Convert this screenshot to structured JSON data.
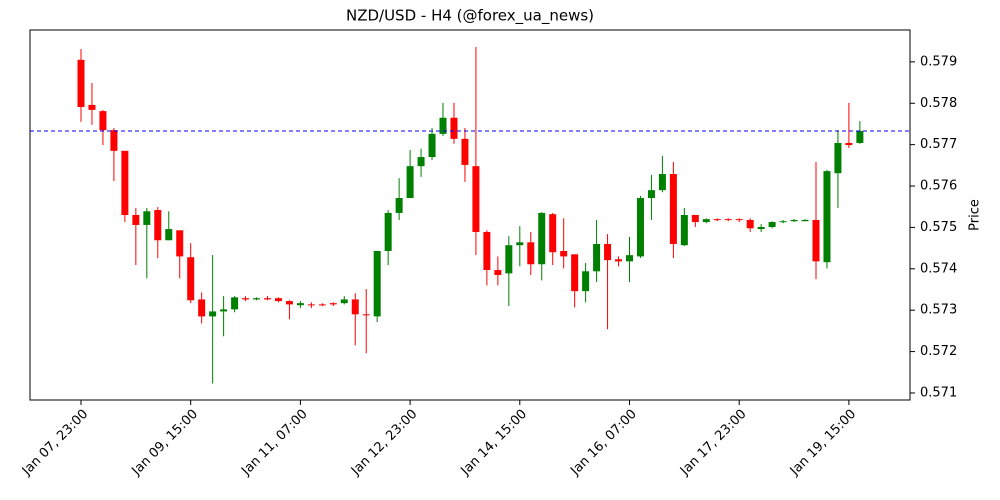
{
  "chart_data": {
    "type": "candlestick",
    "title": "NZD/USD - H4 (@forex_ua_news)",
    "ylabel": "Price",
    "categories": [
      "Jan 07, 23:00",
      null,
      null,
      null,
      null,
      null,
      null,
      null,
      null,
      null,
      "Jan 09, 15:00",
      null,
      null,
      null,
      null,
      null,
      null,
      null,
      null,
      null,
      "Jan 11, 07:00",
      null,
      null,
      null,
      null,
      null,
      null,
      null,
      null,
      null,
      "Jan 12, 23:00",
      null,
      null,
      null,
      null,
      null,
      null,
      null,
      null,
      null,
      "Jan 14, 15:00",
      null,
      null,
      null,
      null,
      null,
      null,
      null,
      null,
      null,
      "Jan 16, 07:00",
      null,
      null,
      null,
      null,
      null,
      null,
      null,
      null,
      null,
      "Jan 17, 23:00",
      null,
      null,
      null,
      null,
      null,
      null,
      null,
      null,
      null,
      "Jan 19, 15:00",
      null
    ],
    "open": [
      0.57905,
      0.57796,
      0.57781,
      0.57735,
      0.57685,
      0.5753,
      0.57506,
      0.57542,
      0.57469,
      0.57493,
      0.57428,
      0.57326,
      0.57285,
      0.57297,
      0.57302,
      0.57329,
      0.57326,
      0.57329,
      0.57329,
      0.57322,
      0.57312,
      0.57314,
      0.57314,
      0.57317,
      0.57317,
      0.57326,
      0.5729,
      0.57285,
      0.57443,
      0.57535,
      0.57571,
      0.57648,
      0.5767,
      0.57726,
      0.57765,
      0.57714,
      0.57648,
      0.57489,
      0.57397,
      0.57389,
      0.57457,
      0.57464,
      0.57411,
      0.57532,
      0.57443,
      0.57435,
      0.57346,
      0.57394,
      0.5746,
      0.57423,
      0.57418,
      0.5743,
      0.57571,
      0.5759,
      0.57629,
      0.57457,
      0.5753,
      0.57513,
      0.5752,
      0.5752,
      0.5752,
      0.57518,
      0.57496,
      0.57501,
      0.57513,
      0.57515,
      0.57515,
      0.57518,
      0.57416,
      0.57631,
      0.57704,
      0.57704
    ],
    "high": [
      0.57931,
      0.57849,
      0.57784,
      0.5774,
      0.57685,
      0.57547,
      0.57547,
      0.57549,
      0.57539,
      0.57493,
      0.57462,
      0.57343,
      0.57433,
      0.57334,
      0.57334,
      0.57334,
      0.57331,
      0.57334,
      0.57331,
      0.57324,
      0.57322,
      0.57319,
      0.57317,
      0.57319,
      0.57334,
      0.57341,
      0.57351,
      0.57443,
      0.57542,
      0.57619,
      0.57687,
      0.5769,
      0.5774,
      0.57801,
      0.57801,
      0.5774,
      0.57936,
      0.57493,
      0.5743,
      0.57479,
      0.57503,
      0.57489,
      0.57537,
      0.57535,
      0.57522,
      0.57435,
      0.57414,
      0.57518,
      0.57484,
      0.5743,
      0.57477,
      0.57576,
      0.57627,
      0.57673,
      0.57658,
      0.57547,
      0.5753,
      0.57522,
      0.57522,
      0.57522,
      0.57522,
      0.57522,
      0.57508,
      0.57515,
      0.57518,
      0.5752,
      0.5752,
      0.57658,
      0.57639,
      0.57735,
      0.57801,
      0.57757
    ],
    "low": [
      0.57755,
      0.57748,
      0.57699,
      0.57612,
      0.57513,
      0.57409,
      0.57377,
      0.57426,
      0.57469,
      0.57377,
      0.57317,
      0.57268,
      0.57123,
      0.57237,
      0.57295,
      0.57322,
      0.57324,
      0.57324,
      0.57319,
      0.57278,
      0.57305,
      0.57305,
      0.5731,
      0.5731,
      0.57314,
      0.57215,
      0.57196,
      0.57271,
      0.57409,
      0.57518,
      0.57571,
      0.57622,
      0.57663,
      0.57721,
      0.57702,
      0.5761,
      0.57433,
      0.5736,
      0.5736,
      0.5731,
      0.57406,
      0.57385,
      0.57372,
      0.57409,
      0.57401,
      0.57307,
      0.57319,
      0.57368,
      0.57254,
      0.57406,
      0.57368,
      0.57426,
      0.57518,
      0.57585,
      0.57426,
      0.57455,
      0.57501,
      0.5751,
      0.57515,
      0.57515,
      0.57513,
      0.57489,
      0.57489,
      0.57498,
      0.5751,
      0.57513,
      0.57515,
      0.57375,
      0.57401,
      0.57547,
      0.57692,
      0.57702
    ],
    "close": [
      0.57791,
      0.57784,
      0.57735,
      0.57685,
      0.5753,
      0.57506,
      0.57539,
      0.57469,
      0.57496,
      0.5743,
      0.57324,
      0.57285,
      0.57297,
      0.57302,
      0.57331,
      0.57326,
      0.57329,
      0.57326,
      0.57322,
      0.57314,
      0.57317,
      0.57312,
      0.57312,
      0.57314,
      0.57326,
      0.5729,
      0.57288,
      0.57443,
      0.57535,
      0.57571,
      0.57648,
      0.5767,
      0.57726,
      0.57765,
      0.57714,
      0.57651,
      0.57489,
      0.57397,
      0.57385,
      0.57457,
      0.57464,
      0.57411,
      0.57535,
      0.5744,
      0.5743,
      0.57346,
      0.57394,
      0.5746,
      0.57421,
      0.57418,
      0.57433,
      0.57571,
      0.5759,
      0.57629,
      0.5746,
      0.5753,
      0.57513,
      0.5752,
      0.57518,
      0.57518,
      0.57518,
      0.57498,
      0.57501,
      0.57513,
      0.57515,
      0.57518,
      0.57518,
      0.57418,
      0.57636,
      0.57704,
      0.57699,
      0.57733
    ],
    "up_color": "#008000",
    "down_color": "#ff0000",
    "hline": 0.57733,
    "hline_color": "#0000ff",
    "ylim": [
      0.57083,
      0.57977
    ],
    "yticks": [
      0.571,
      0.572,
      0.573,
      0.574,
      0.575,
      0.576,
      0.577,
      0.578,
      0.579
    ]
  }
}
